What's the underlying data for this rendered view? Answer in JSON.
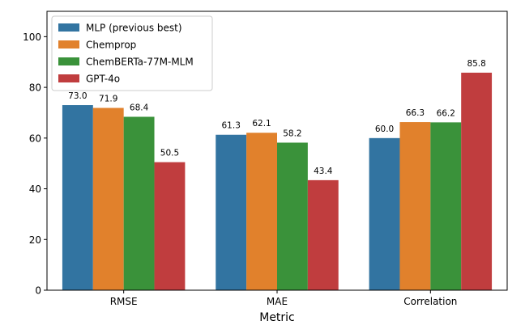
{
  "chart_data": {
    "type": "bar",
    "xlabel": "Metric",
    "ylabel": "",
    "ylim": [
      0,
      110
    ],
    "yticks": [
      0,
      20,
      40,
      60,
      80,
      100
    ],
    "categories": [
      "RMSE",
      "MAE",
      "Correlation"
    ],
    "series": [
      {
        "name": "MLP (previous best)",
        "color": "#3274a1",
        "values": [
          73.0,
          61.3,
          60.0
        ],
        "labels": [
          "73.0",
          "61.3",
          "60.0"
        ]
      },
      {
        "name": "Chemprop",
        "color": "#e1812c",
        "values": [
          71.9,
          62.1,
          66.3
        ],
        "labels": [
          "71.9",
          "62.1",
          "66.3"
        ]
      },
      {
        "name": "ChemBERTa-77M-MLM",
        "color": "#3a923a",
        "values": [
          68.4,
          58.2,
          66.2
        ],
        "labels": [
          "68.4",
          "58.2",
          "66.2"
        ]
      },
      {
        "name": "GPT-4o",
        "color": "#c03d3e",
        "values": [
          50.5,
          43.4,
          85.8
        ],
        "labels": [
          "50.5",
          "43.4",
          "85.8"
        ]
      }
    ],
    "legend": {
      "position": "top-left"
    },
    "grid": false
  }
}
